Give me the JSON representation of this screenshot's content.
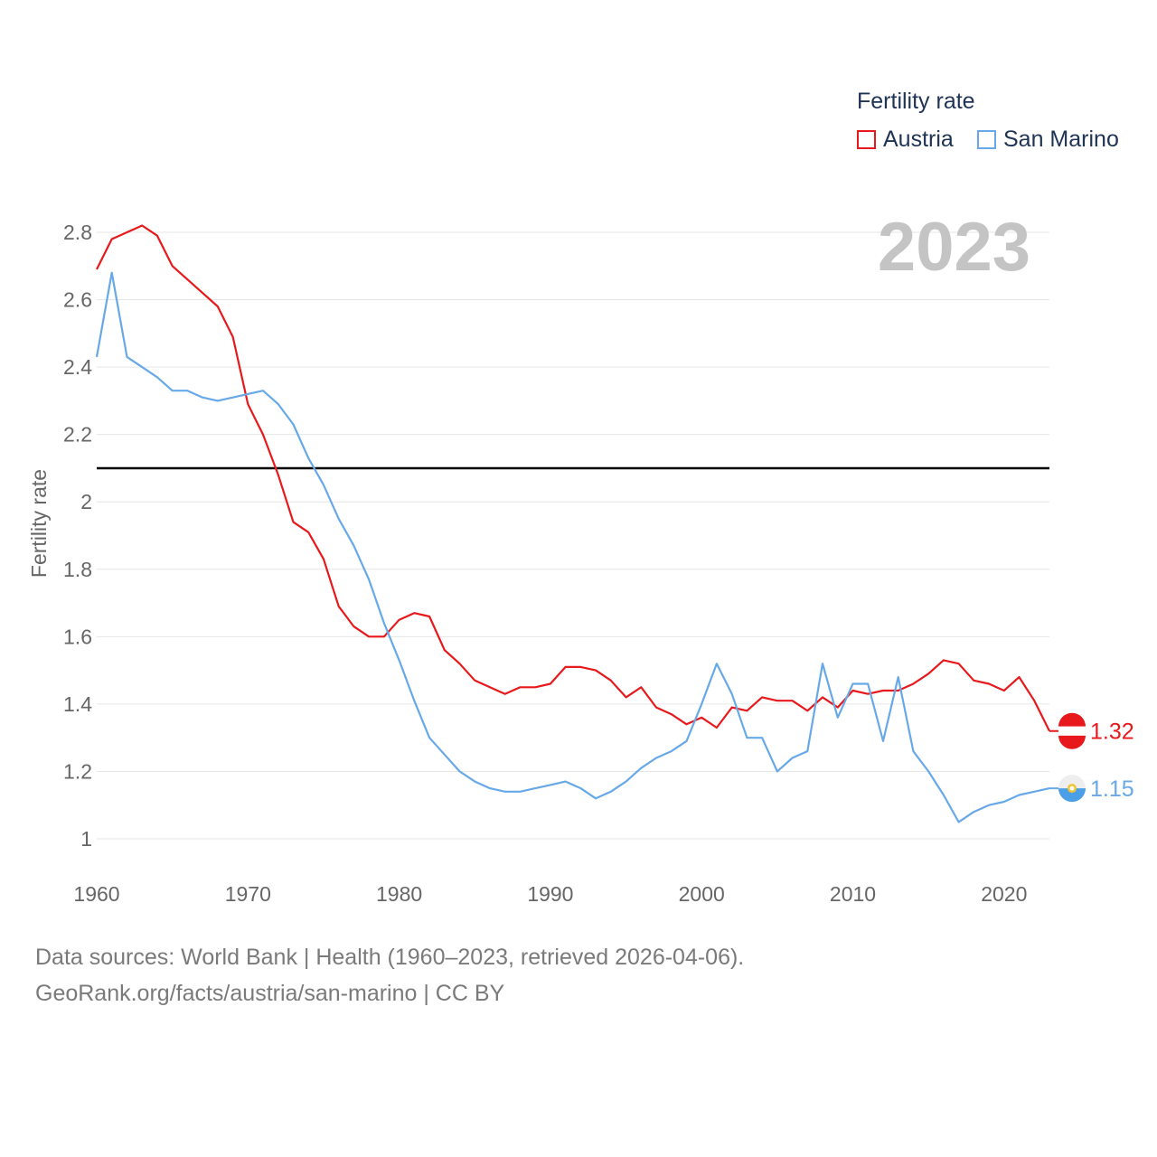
{
  "colors": {
    "austria": "#e8191c",
    "san_marino": "#67a9e8",
    "grid": "#e6e6e6",
    "axis_text": "#666666",
    "watermark": "#c4c4c4",
    "threshold": "#000000"
  },
  "legend": {
    "title": "Fertility rate",
    "items": [
      "Austria",
      "San Marino"
    ]
  },
  "year_label": "2023",
  "source": {
    "line1": "Data sources: World Bank | Health (1960–2023, retrieved 2026-04-06).",
    "line2": "GeoRank.org/facts/austria/san-marino | CC BY"
  },
  "end_labels": {
    "austria": "1.32",
    "san_marino": "1.15"
  },
  "icons": {
    "austria": "austria-flag-icon",
    "san_marino": "san-marino-flag-icon"
  },
  "chart_data": {
    "type": "line",
    "title": "",
    "xlabel": "",
    "ylabel": "Fertility rate",
    "xlim": [
      1960,
      2023
    ],
    "ylim": [
      0.93,
      2.9
    ],
    "x_ticks": [
      1960,
      1970,
      1980,
      1990,
      2000,
      2010,
      2020
    ],
    "x_tick_labels": [
      "1960",
      "1970",
      "1980",
      "1990",
      "2000",
      "2010",
      "2020"
    ],
    "y_ticks": [
      1,
      1.2,
      1.4,
      1.6,
      1.8,
      2,
      2.2,
      2.4,
      2.6,
      2.8
    ],
    "y_tick_labels": [
      "1",
      "1.2",
      "1.4",
      "1.6",
      "1.8",
      "2",
      "2.2",
      "2.4",
      "2.6",
      "2.8"
    ],
    "reference_line": 2.1,
    "x": [
      1960,
      1961,
      1962,
      1963,
      1964,
      1965,
      1966,
      1967,
      1968,
      1969,
      1970,
      1971,
      1972,
      1973,
      1974,
      1975,
      1976,
      1977,
      1978,
      1979,
      1980,
      1981,
      1982,
      1983,
      1984,
      1985,
      1986,
      1987,
      1988,
      1989,
      1990,
      1991,
      1992,
      1993,
      1994,
      1995,
      1996,
      1997,
      1998,
      1999,
      2000,
      2001,
      2002,
      2003,
      2004,
      2005,
      2006,
      2007,
      2008,
      2009,
      2010,
      2011,
      2012,
      2013,
      2014,
      2015,
      2016,
      2017,
      2018,
      2019,
      2020,
      2021,
      2022,
      2023
    ],
    "series": [
      {
        "name": "Austria",
        "values": [
          2.69,
          2.78,
          2.8,
          2.82,
          2.79,
          2.7,
          2.66,
          2.62,
          2.58,
          2.49,
          2.29,
          2.2,
          2.08,
          1.94,
          1.91,
          1.83,
          1.69,
          1.63,
          1.6,
          1.6,
          1.65,
          1.67,
          1.66,
          1.56,
          1.52,
          1.47,
          1.45,
          1.43,
          1.45,
          1.45,
          1.46,
          1.51,
          1.51,
          1.5,
          1.47,
          1.42,
          1.45,
          1.39,
          1.37,
          1.34,
          1.36,
          1.33,
          1.39,
          1.38,
          1.42,
          1.41,
          1.41,
          1.38,
          1.42,
          1.39,
          1.44,
          1.43,
          1.44,
          1.44,
          1.46,
          1.49,
          1.53,
          1.52,
          1.47,
          1.46,
          1.44,
          1.48,
          1.41,
          1.32
        ]
      },
      {
        "name": "San Marino",
        "values": [
          2.43,
          2.68,
          2.43,
          2.4,
          2.37,
          2.33,
          2.33,
          2.31,
          2.3,
          2.31,
          2.32,
          2.33,
          2.29,
          2.23,
          2.13,
          2.05,
          1.95,
          1.87,
          1.77,
          1.64,
          1.53,
          1.41,
          1.3,
          1.25,
          1.2,
          1.17,
          1.15,
          1.14,
          1.14,
          1.15,
          1.16,
          1.17,
          1.15,
          1.12,
          1.14,
          1.17,
          1.21,
          1.24,
          1.26,
          1.29,
          1.4,
          1.52,
          1.43,
          1.3,
          1.3,
          1.2,
          1.24,
          1.26,
          1.52,
          1.36,
          1.46,
          1.46,
          1.29,
          1.48,
          1.26,
          1.2,
          1.13,
          1.05,
          1.08,
          1.1,
          1.11,
          1.13,
          1.14,
          1.15
        ]
      }
    ]
  }
}
